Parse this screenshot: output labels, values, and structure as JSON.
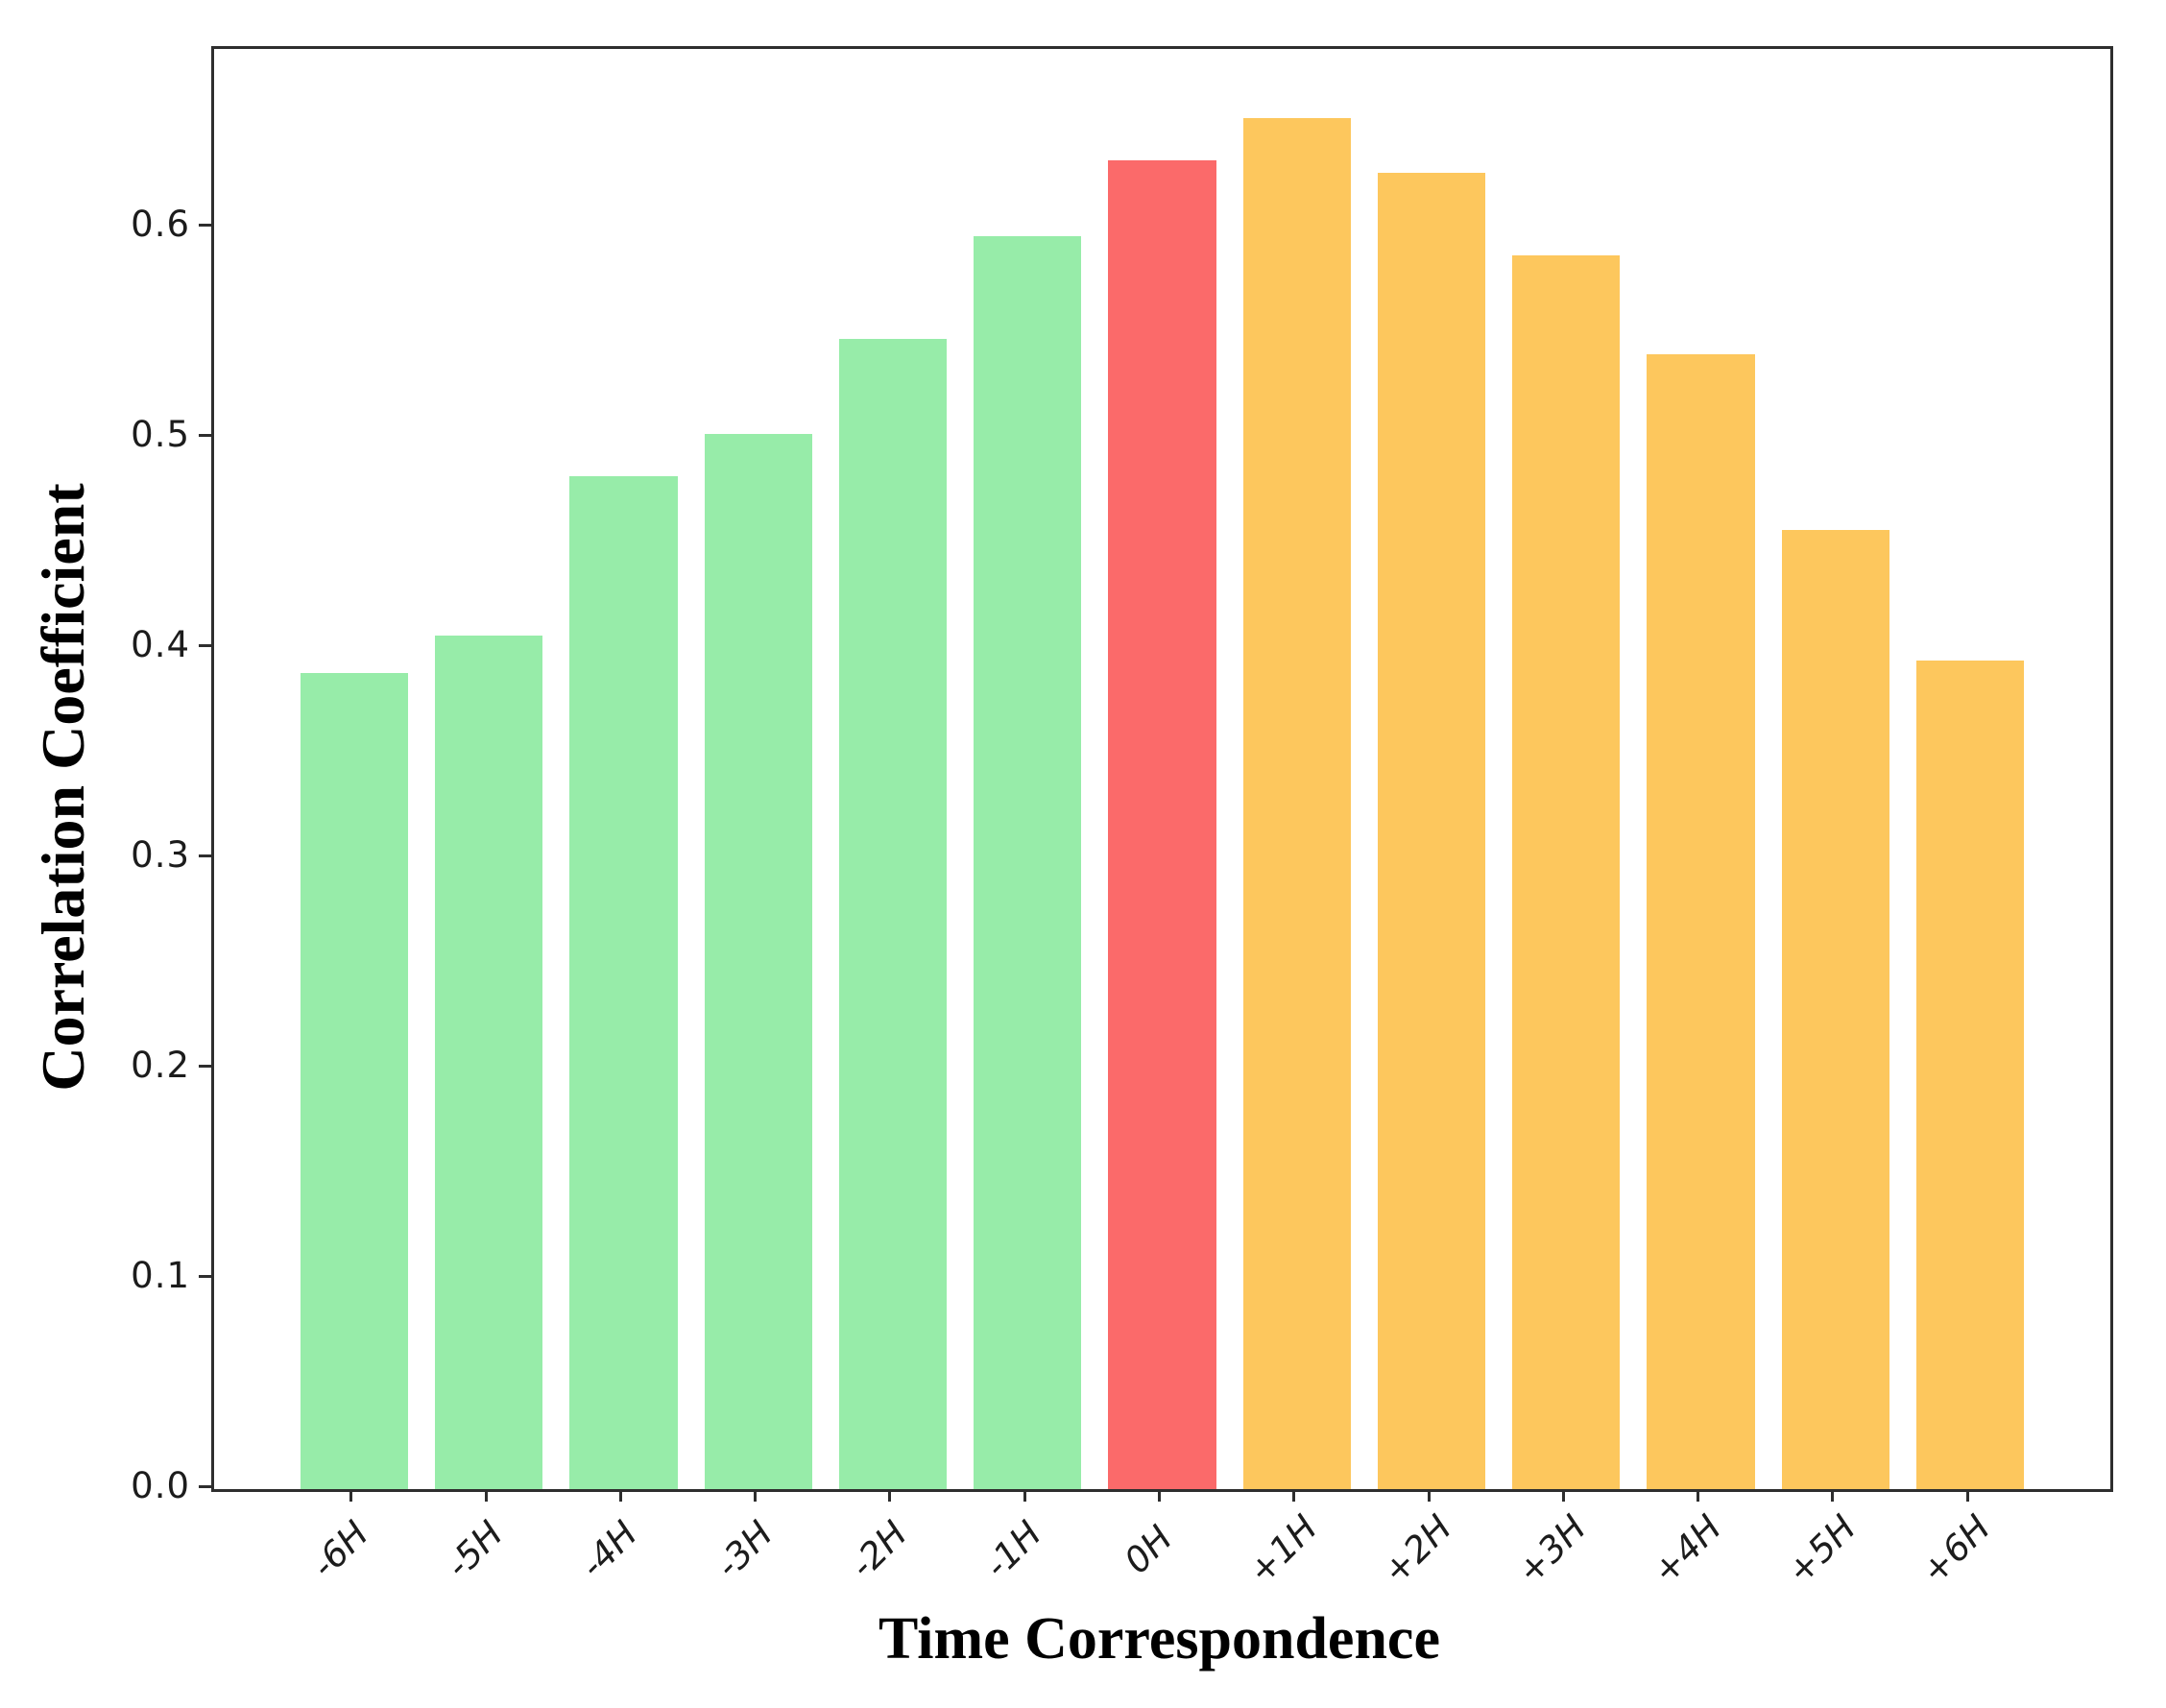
{
  "figure": {
    "type": "matplotlib-style bar chart",
    "background_color": "#ffffff",
    "spine_color": "#2e2e2e"
  },
  "chart_data": {
    "type": "bar",
    "title": "",
    "xlabel": "Time Correspondence",
    "ylabel": "Correlation Coefficient",
    "categories": [
      "-6H",
      "-5H",
      "-4H",
      "-3H",
      "-2H",
      "-1H",
      "0H",
      "+1H",
      "+2H",
      "+3H",
      "+4H",
      "+5H",
      "+6H"
    ],
    "values": [
      0.388,
      0.406,
      0.482,
      0.502,
      0.547,
      0.596,
      0.632,
      0.652,
      0.626,
      0.587,
      0.54,
      0.456,
      0.394
    ],
    "bar_colors": [
      "#97ECA9",
      "#97ECA9",
      "#97ECA9",
      "#97ECA9",
      "#97ECA9",
      "#97ECA9",
      "#FB6A6A",
      "#FDC75D",
      "#FDC75D",
      "#FDC75D",
      "#FDC75D",
      "#FDC75D",
      "#FDC75D"
    ],
    "color_legend": {
      "negative_lag_green": "#97ECA9",
      "zero_lag_red": "#FB6A6A",
      "positive_lag_orange": "#FDC75D"
    },
    "yticks": [
      "0.0",
      "0.1",
      "0.2",
      "0.3",
      "0.4",
      "0.5",
      "0.6"
    ],
    "ylim": [
      0,
      0.685
    ],
    "xticklabel_rotation_deg": 45,
    "grid": false,
    "legend_position": "none"
  }
}
